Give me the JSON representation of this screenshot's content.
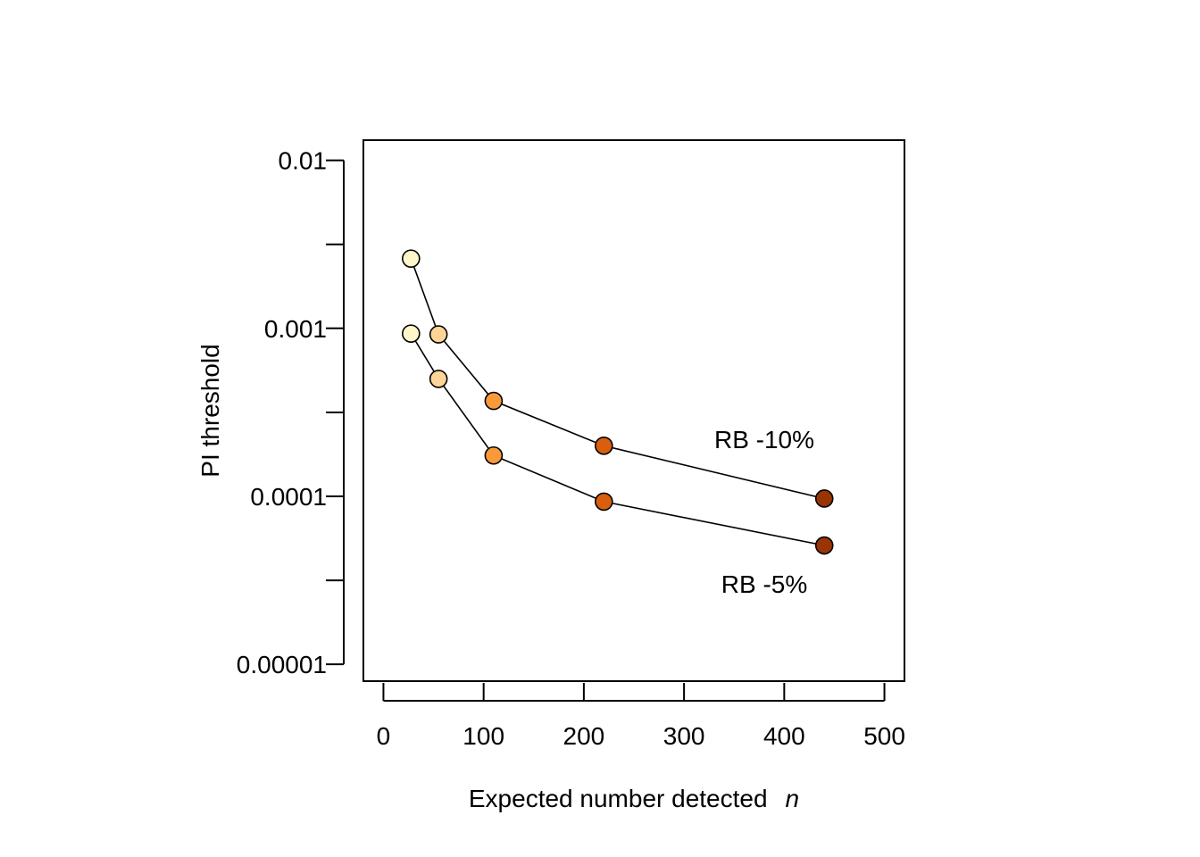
{
  "chart_data": {
    "type": "line",
    "title": "",
    "xlabel": "Expected number detected",
    "xlabel_italic": "n",
    "ylabel": "PI threshold",
    "xlim": [
      -20,
      520
    ],
    "ylim_log10": [
      -5.1,
      -1.88
    ],
    "y_scale": "log",
    "x_ticks": [
      0,
      100,
      200,
      300,
      400,
      500
    ],
    "x_tick_labels": [
      "0",
      "100",
      "200",
      "300",
      "400",
      "500"
    ],
    "y_major_ticks": [
      0.01,
      0.001,
      0.0001,
      1e-05
    ],
    "y_major_tick_labels": [
      "0.01",
      "0.001",
      "0.0001",
      "0.00001"
    ],
    "y_minor_ticks": [
      0.00316,
      0.000316,
      3.16e-05
    ],
    "grid": false,
    "point_colors": [
      "#FFF7C8",
      "#FDD596",
      "#F99A3A",
      "#D95F0E",
      "#993404"
    ],
    "series": [
      {
        "label": "RB -10%",
        "x": [
          27.5,
          55,
          110,
          220,
          440
        ],
        "y": [
          0.0026,
          0.00092,
          0.00037,
          0.0002,
          9.7e-05
        ]
      },
      {
        "label": "RB -5%",
        "x": [
          27.5,
          55,
          110,
          220,
          440
        ],
        "y": [
          0.00093,
          0.0005,
          0.000175,
          9.3e-05,
          5.1e-05
        ]
      }
    ]
  }
}
